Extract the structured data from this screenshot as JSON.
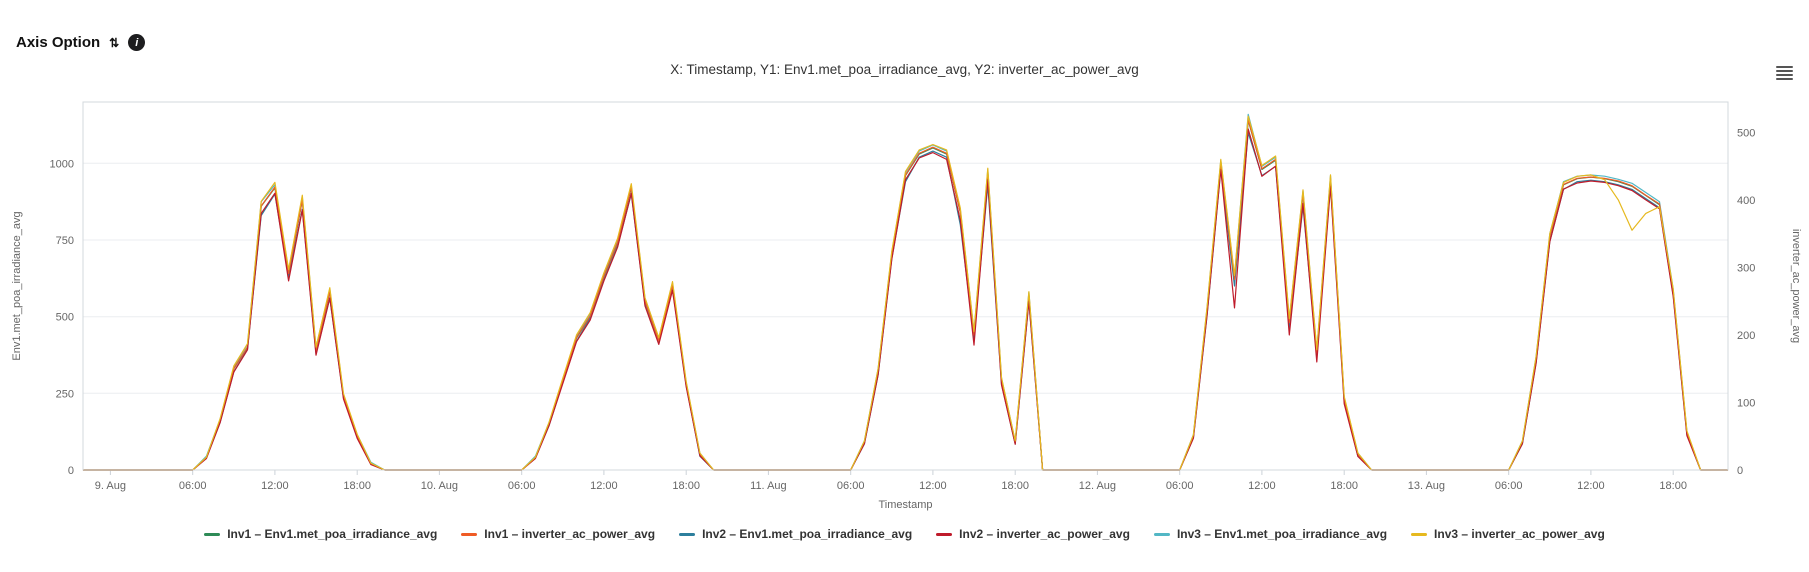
{
  "header": {
    "axis_option_label": "Axis Option",
    "sort_glyph": "⇅",
    "info_glyph": "i"
  },
  "chart_data": {
    "type": "line",
    "title": "X: Timestamp, Y1: Env1.met_poa_irradiance_avg, Y2: inverter_ac_power_avg",
    "xlabel": "Timestamp",
    "ylabel_left": "Env1.met_poa_irradiance_avg",
    "ylabel_right": "inverter_ac_power_avg",
    "grid": "horizontal",
    "legend_position": "bottom",
    "xlim": [
      -2,
      118
    ],
    "ylim_left": [
      0,
      1200
    ],
    "ylim_right": [
      0,
      545
    ],
    "yticks_left": [
      0,
      250,
      500,
      750,
      1000
    ],
    "yticks_right": [
      0,
      100,
      200,
      300,
      400,
      500
    ],
    "x_start_hour": 0,
    "x_step_hours": 1,
    "xticks": [
      {
        "x": 0,
        "label": "9. Aug"
      },
      {
        "x": 6,
        "label": "06:00"
      },
      {
        "x": 12,
        "label": "12:00"
      },
      {
        "x": 18,
        "label": "18:00"
      },
      {
        "x": 24,
        "label": "10. Aug"
      },
      {
        "x": 30,
        "label": "06:00"
      },
      {
        "x": 36,
        "label": "12:00"
      },
      {
        "x": 42,
        "label": "18:00"
      },
      {
        "x": 48,
        "label": "11. Aug"
      },
      {
        "x": 54,
        "label": "06:00"
      },
      {
        "x": 60,
        "label": "12:00"
      },
      {
        "x": 66,
        "label": "18:00"
      },
      {
        "x": 72,
        "label": "12. Aug"
      },
      {
        "x": 78,
        "label": "06:00"
      },
      {
        "x": 84,
        "label": "12:00"
      },
      {
        "x": 90,
        "label": "18:00"
      },
      {
        "x": 96,
        "label": "13. Aug"
      },
      {
        "x": 102,
        "label": "06:00"
      },
      {
        "x": 108,
        "label": "12:00"
      },
      {
        "x": 114,
        "label": "18:00"
      }
    ],
    "series": [
      {
        "name": "Inv1 – Env1.met_poa_irradiance_avg",
        "axis": "left",
        "color": "#2e8b57",
        "values": [
          0,
          0,
          0,
          0,
          0,
          0,
          0,
          40,
          160,
          330,
          400,
          860,
          920,
          640,
          880,
          390,
          580,
          240,
          110,
          20,
          0,
          0,
          0,
          0,
          0,
          0,
          0,
          0,
          0,
          0,
          0,
          40,
          150,
          290,
          430,
          500,
          630,
          740,
          920,
          550,
          420,
          600,
          280,
          50,
          0,
          0,
          0,
          0,
          0,
          0,
          0,
          0,
          0,
          0,
          0,
          90,
          320,
          700,
          960,
          1030,
          1050,
          1030,
          840,
          440,
          970,
          290,
          90,
          570,
          0,
          0,
          0,
          0,
          0,
          0,
          0,
          0,
          0,
          0,
          0,
          110,
          520,
          1000,
          620,
          1140,
          980,
          1010,
          480,
          900,
          380,
          950,
          230,
          50,
          0,
          0,
          0,
          0,
          0,
          0,
          0,
          0,
          0,
          0,
          0,
          90,
          360,
          760,
          930,
          950,
          955,
          950,
          940,
          925,
          895,
          865,
          580,
          120,
          0,
          0,
          0,
          0
        ]
      },
      {
        "name": "Inv1 – inverter_ac_power_avg",
        "axis": "right",
        "color": "#ef5b25",
        "values": [
          0,
          0,
          0,
          0,
          0,
          0,
          0,
          18,
          73,
          150,
          182,
          391,
          419,
          291,
          400,
          177,
          264,
          109,
          50,
          9,
          0,
          0,
          0,
          0,
          0,
          0,
          0,
          0,
          0,
          0,
          0,
          18,
          68,
          132,
          196,
          228,
          287,
          337,
          419,
          250,
          191,
          273,
          127,
          23,
          0,
          0,
          0,
          0,
          0,
          0,
          0,
          0,
          0,
          0,
          0,
          41,
          146,
          319,
          437,
          469,
          478,
          469,
          382,
          200,
          441,
          132,
          41,
          259,
          0,
          0,
          0,
          0,
          0,
          0,
          0,
          0,
          0,
          0,
          0,
          50,
          237,
          455,
          282,
          519,
          446,
          460,
          218,
          410,
          173,
          432,
          105,
          23,
          0,
          0,
          0,
          0,
          0,
          0,
          0,
          0,
          0,
          0,
          0,
          41,
          164,
          346,
          423,
          432,
          434,
          432,
          428,
          421,
          407,
          394,
          264,
          55,
          0,
          0,
          0,
          0
        ]
      },
      {
        "name": "Inv2 – Env1.met_poa_irradiance_avg",
        "axis": "left",
        "color": "#2d7f9d",
        "values": [
          0,
          0,
          0,
          0,
          0,
          0,
          0,
          40,
          155,
          320,
          395,
          830,
          900,
          630,
          850,
          380,
          560,
          235,
          105,
          20,
          0,
          0,
          0,
          0,
          0,
          0,
          0,
          0,
          0,
          0,
          0,
          40,
          145,
          285,
          420,
          495,
          620,
          730,
          900,
          540,
          415,
          590,
          275,
          45,
          0,
          0,
          0,
          0,
          0,
          0,
          0,
          0,
          0,
          0,
          0,
          85,
          310,
          690,
          940,
          1020,
          1040,
          1020,
          800,
          430,
          930,
          280,
          85,
          550,
          0,
          0,
          0,
          0,
          0,
          0,
          0,
          0,
          0,
          0,
          0,
          105,
          505,
          980,
          600,
          1100,
          960,
          990,
          460,
          860,
          370,
          930,
          225,
          45,
          0,
          0,
          0,
          0,
          0,
          0,
          0,
          0,
          0,
          0,
          0,
          85,
          350,
          745,
          915,
          940,
          945,
          940,
          930,
          915,
          885,
          855,
          570,
          115,
          0,
          0,
          0,
          0
        ]
      },
      {
        "name": "Inv2 – inverter_ac_power_avg",
        "axis": "right",
        "color": "#bf1b2b",
        "values": [
          0,
          0,
          0,
          0,
          0,
          0,
          0,
          17,
          70,
          145,
          178,
          380,
          410,
          280,
          385,
          170,
          255,
          105,
          47,
          8,
          0,
          0,
          0,
          0,
          0,
          0,
          0,
          0,
          0,
          0,
          0,
          17,
          66,
          128,
          190,
          222,
          280,
          330,
          410,
          243,
          186,
          266,
          123,
          21,
          0,
          0,
          0,
          0,
          0,
          0,
          0,
          0,
          0,
          0,
          0,
          39,
          141,
          312,
          430,
          462,
          470,
          460,
          370,
          185,
          430,
          126,
          38,
          250,
          0,
          0,
          0,
          0,
          0,
          0,
          0,
          0,
          0,
          0,
          0,
          47,
          230,
          445,
          240,
          505,
          435,
          450,
          200,
          395,
          160,
          420,
          98,
          20,
          0,
          0,
          0,
          0,
          0,
          0,
          0,
          0,
          0,
          0,
          0,
          39,
          158,
          338,
          416,
          425,
          428,
          426,
          421,
          414,
          400,
          387,
          257,
          51,
          0,
          0,
          0,
          0
        ]
      },
      {
        "name": "Inv3 – Env1.met_poa_irradiance_avg",
        "axis": "left",
        "color": "#52b7c5",
        "values": [
          0,
          0,
          0,
          0,
          0,
          0,
          0,
          45,
          165,
          335,
          410,
          875,
          930,
          650,
          890,
          400,
          590,
          245,
          115,
          25,
          0,
          0,
          0,
          0,
          0,
          0,
          0,
          0,
          0,
          0,
          0,
          45,
          155,
          295,
          435,
          510,
          640,
          750,
          925,
          560,
          430,
          610,
          285,
          55,
          0,
          0,
          0,
          0,
          0,
          0,
          0,
          0,
          0,
          0,
          0,
          95,
          330,
          710,
          970,
          1040,
          1060,
          1040,
          850,
          450,
          980,
          300,
          95,
          580,
          0,
          0,
          0,
          0,
          0,
          0,
          0,
          0,
          0,
          0,
          0,
          115,
          530,
          1010,
          630,
          1160,
          990,
          1020,
          490,
          910,
          390,
          960,
          235,
          55,
          0,
          0,
          0,
          0,
          0,
          0,
          0,
          0,
          0,
          0,
          0,
          95,
          370,
          770,
          940,
          958,
          962,
          958,
          948,
          935,
          905,
          875,
          590,
          125,
          0,
          0,
          0,
          0
        ]
      },
      {
        "name": "Inv3 – inverter_ac_power_avg",
        "axis": "right",
        "color": "#e6b91f",
        "values": [
          0,
          0,
          0,
          0,
          0,
          0,
          0,
          19,
          76,
          154,
          187,
          398,
          426,
          297,
          407,
          182,
          270,
          113,
          53,
          10,
          0,
          0,
          0,
          0,
          0,
          0,
          0,
          0,
          0,
          0,
          0,
          19,
          71,
          136,
          200,
          233,
          292,
          343,
          424,
          255,
          196,
          279,
          131,
          25,
          0,
          0,
          0,
          0,
          0,
          0,
          0,
          0,
          0,
          0,
          0,
          43,
          150,
          324,
          442,
          474,
          482,
          474,
          388,
          205,
          447,
          137,
          43,
          264,
          0,
          0,
          0,
          0,
          0,
          0,
          0,
          0,
          0,
          0,
          0,
          52,
          242,
          460,
          288,
          524,
          451,
          465,
          224,
          415,
          178,
          437,
          109,
          25,
          0,
          0,
          0,
          0,
          0,
          0,
          0,
          0,
          0,
          0,
          0,
          43,
          168,
          350,
          426,
          435,
          437,
          430,
          400,
          355,
          380,
          390,
          268,
          58,
          0,
          0,
          0,
          0
        ]
      }
    ]
  }
}
